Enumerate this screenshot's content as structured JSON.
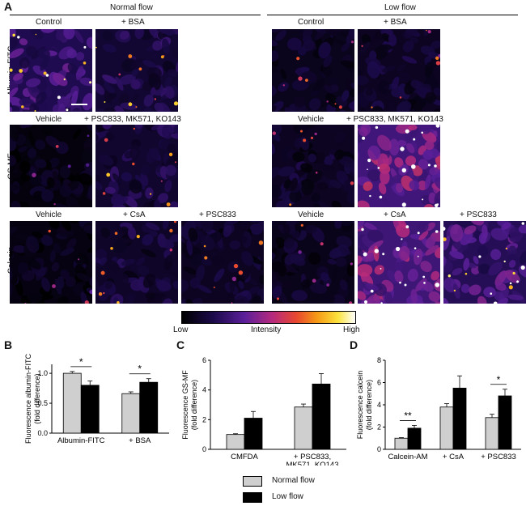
{
  "panel_labels": {
    "A": "A",
    "B": "B",
    "C": "C",
    "D": "D"
  },
  "conditions": {
    "normal": "Normal flow",
    "low": "Low flow"
  },
  "row_labels": {
    "albumin": "Albumin-FITC",
    "gsmf": "GS-MF",
    "calcein": "Calcein"
  },
  "image_labels": {
    "control": "Control",
    "bsa": "+ BSA",
    "vehicle": "Vehicle",
    "inhibitors": "+ PSC833, MK571, KO143",
    "csa": "+ CsA",
    "psc833": "+ PSC833"
  },
  "colorbar": {
    "low": "Low",
    "mid": "Intensity",
    "high": "High"
  },
  "legend": {
    "normal": "Normal flow",
    "low": "Low flow"
  },
  "colors": {
    "normal": "#cfcfcf",
    "low": "#000000"
  },
  "chart_data": [
    {
      "panel": "B",
      "type": "bar",
      "ylabel": "Fluorescence albumin-FITC\n(fold difference)",
      "ylim": [
        0,
        1.0
      ],
      "yticks": [
        "0.0",
        "0.5",
        "1.0"
      ],
      "categories": [
        "Albumin-FITC",
        "+ BSA"
      ],
      "series": [
        {
          "name": "Normal flow",
          "values": [
            1.0,
            0.66
          ],
          "errors": [
            0.03,
            0.03
          ]
        },
        {
          "name": "Low flow",
          "values": [
            0.8,
            0.85
          ],
          "errors": [
            0.07,
            0.06
          ]
        }
      ],
      "significance": [
        "*",
        "*"
      ]
    },
    {
      "panel": "C",
      "type": "bar",
      "ylabel": "Fluorescence GS-MF\n(fold difference)",
      "ylim": [
        0,
        6
      ],
      "yticks": [
        "0",
        "2",
        "4",
        "6"
      ],
      "categories": [
        "CMFDA",
        "+ PSC833,\nMK571, KO143"
      ],
      "series": [
        {
          "name": "Normal flow",
          "values": [
            1.0,
            2.85
          ],
          "errors": [
            0.05,
            0.2
          ]
        },
        {
          "name": "Low flow",
          "values": [
            2.1,
            4.4
          ],
          "errors": [
            0.45,
            0.7
          ]
        }
      ],
      "significance": [
        "",
        ""
      ]
    },
    {
      "panel": "D",
      "type": "bar",
      "ylabel": "Fluorescence calcein\n(fold difference)",
      "ylim": [
        0,
        8
      ],
      "yticks": [
        "0",
        "2",
        "4",
        "6",
        "8"
      ],
      "categories": [
        "Calcein-AM",
        "+ CsA",
        "+ PSC833"
      ],
      "series": [
        {
          "name": "Normal flow",
          "values": [
            1.0,
            3.8,
            2.85
          ],
          "errors": [
            0.05,
            0.3,
            0.3
          ]
        },
        {
          "name": "Low flow",
          "values": [
            1.9,
            5.5,
            4.8
          ],
          "errors": [
            0.25,
            1.1,
            0.6
          ]
        }
      ],
      "significance": [
        "**",
        "",
        "*"
      ]
    }
  ]
}
